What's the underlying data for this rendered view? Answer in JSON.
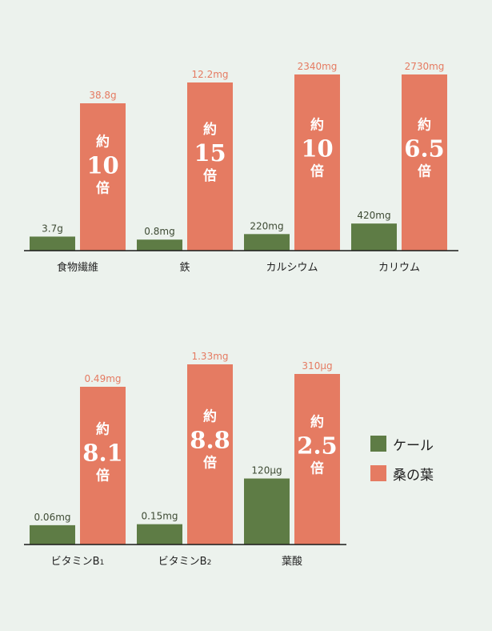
{
  "colors": {
    "kale": "#5e7c45",
    "mulberry": "#e57b62",
    "background": "#ecf2ed",
    "value_text": "#e57b62",
    "kale_text": "#3d4a33"
  },
  "legend": {
    "kale_label": "ケール",
    "mulberry_label": "桑の葉"
  },
  "chart_data": [
    {
      "type": "bar",
      "categories": [
        "食物繊維",
        "鉄",
        "カルシウム",
        "カリウム"
      ],
      "series": [
        {
          "name": "ケール",
          "values": [
            3.7,
            0.8,
            220,
            420
          ],
          "labels": [
            "3.7g",
            "0.8mg",
            "220mg",
            "420mg"
          ]
        },
        {
          "name": "桑の葉",
          "values": [
            38.8,
            12.2,
            2340,
            2730
          ],
          "labels": [
            "38.8g",
            "12.2mg",
            "2340mg",
            "2730mg"
          ]
        }
      ],
      "ratios": [
        "10",
        "15",
        "10",
        "6.5"
      ],
      "ratio_prefix": "約",
      "ratio_suffix": "倍"
    },
    {
      "type": "bar",
      "categories": [
        "ビタミンB1",
        "ビタミンB2",
        "葉酸"
      ],
      "category_parts": [
        [
          "ビタミンB",
          "1"
        ],
        [
          "ビタミンB",
          "2"
        ],
        [
          "葉酸",
          ""
        ]
      ],
      "series": [
        {
          "name": "ケール",
          "values": [
            0.06,
            0.15,
            120
          ],
          "labels": [
            "0.06mg",
            "0.15mg",
            "120μg"
          ]
        },
        {
          "name": "桑の葉",
          "values": [
            0.49,
            1.33,
            310
          ],
          "labels": [
            "0.49mg",
            "1.33mg",
            "310μg"
          ]
        }
      ],
      "ratios": [
        "8.1",
        "8.8",
        "2.5"
      ],
      "ratio_prefix": "約",
      "ratio_suffix": "倍"
    }
  ]
}
